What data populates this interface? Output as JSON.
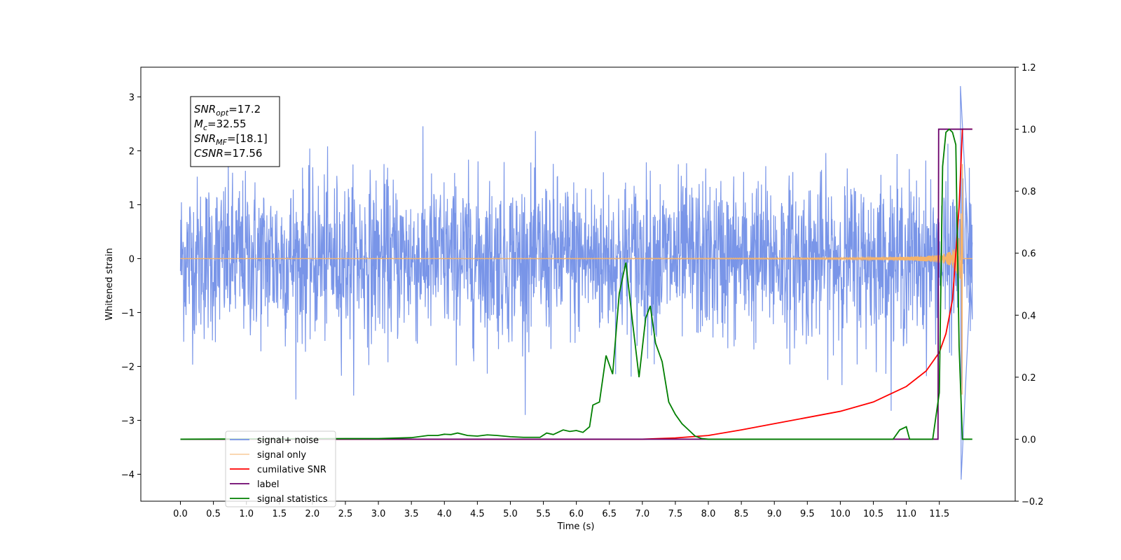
{
  "chart_data": {
    "type": "line",
    "xlabel": "Time (s)",
    "ylabel": "Whitened strain",
    "xlim": [
      -0.6,
      12.65
    ],
    "ylim_left": [
      -4.5,
      3.55
    ],
    "ylim_right": [
      -0.2,
      1.2
    ],
    "x_ticks": [
      "0.0",
      "0.5",
      "1.0",
      "1.5",
      "2.0",
      "2.5",
      "3.0",
      "3.5",
      "4.0",
      "4.5",
      "5.0",
      "5.5",
      "6.0",
      "6.5",
      "7.0",
      "7.5",
      "8.0",
      "8.5",
      "9.0",
      "9.5",
      "10.0",
      "10.5",
      "11.0",
      "11.5"
    ],
    "y_ticks_left": [
      "3",
      "2",
      "1",
      "0",
      "−1",
      "−2",
      "−3",
      "−4"
    ],
    "y_ticks_right": [
      "1.2",
      "1.0",
      "0.8",
      "0.6",
      "0.4",
      "0.2",
      "0.0",
      "−0.2"
    ],
    "annotation": {
      "lines": [
        {
          "main": "SNR",
          "sub": "opt",
          "rest": "=17.2"
        },
        {
          "main": "M",
          "sub": "c",
          "rest": "=32.55"
        },
        {
          "main": "SNR",
          "sub": "MF",
          "rest": "=[18.1]"
        },
        {
          "main": "CSNR",
          "sub": "",
          "rest": "=17.56"
        }
      ]
    },
    "legend_position": "lower-left",
    "series": [
      {
        "name": "signal+ noise",
        "axis": "left",
        "color": "#6a8ae6",
        "description_style": "noise",
        "noise_amplitude": 1.35,
        "x_range": [
          0.0,
          12.0
        ],
        "peak_max": 3.2,
        "peak_min": -4.1
      },
      {
        "name": "signal only",
        "axis": "left",
        "color": "#f5b36a",
        "x_range": [
          0.0,
          12.0
        ],
        "chirp_end": 11.85,
        "amplitude_peak": 2.8
      },
      {
        "name": "cumilative SNR",
        "axis": "right",
        "color": "#ff0000",
        "x": [
          0.0,
          6.5,
          7.0,
          7.5,
          8.0,
          8.5,
          9.0,
          9.5,
          10.0,
          10.5,
          11.0,
          11.3,
          11.5,
          11.6,
          11.7,
          11.8,
          11.85,
          12.0
        ],
        "y": [
          0.0,
          0.0,
          0.0,
          0.004,
          0.012,
          0.03,
          0.05,
          0.07,
          0.09,
          0.12,
          0.17,
          0.22,
          0.28,
          0.34,
          0.45,
          0.75,
          1.0,
          1.0
        ]
      },
      {
        "name": "label",
        "axis": "right",
        "color": "#6b006b",
        "x": [
          0.0,
          11.48,
          11.49,
          11.86,
          11.87,
          12.0
        ],
        "y": [
          0.0,
          0.0,
          1.0,
          1.0,
          1.0,
          1.0
        ]
      },
      {
        "name": "signal statistics",
        "axis": "right",
        "color": "#007f00",
        "x": [
          0.0,
          2.5,
          3.0,
          3.5,
          3.75,
          3.9,
          4.0,
          4.1,
          4.2,
          4.35,
          4.5,
          4.65,
          4.8,
          5.0,
          5.2,
          5.45,
          5.55,
          5.65,
          5.8,
          5.9,
          6.0,
          6.1,
          6.2,
          6.25,
          6.35,
          6.45,
          6.55,
          6.65,
          6.75,
          6.85,
          6.95,
          7.05,
          7.12,
          7.2,
          7.3,
          7.4,
          7.5,
          7.6,
          7.7,
          7.8,
          7.9,
          8.0,
          10.8,
          10.9,
          11.0,
          11.05,
          11.4,
          11.5,
          11.55,
          11.6,
          11.65,
          11.7,
          11.75,
          11.8,
          11.85,
          11.9,
          12.0
        ],
        "y": [
          0.0,
          0.002,
          0.002,
          0.005,
          0.012,
          0.012,
          0.016,
          0.015,
          0.02,
          0.012,
          0.01,
          0.014,
          0.012,
          0.008,
          0.006,
          0.006,
          0.02,
          0.015,
          0.03,
          0.025,
          0.028,
          0.022,
          0.04,
          0.11,
          0.12,
          0.27,
          0.21,
          0.47,
          0.57,
          0.38,
          0.2,
          0.39,
          0.43,
          0.31,
          0.25,
          0.12,
          0.08,
          0.05,
          0.03,
          0.01,
          0.002,
          0.0,
          0.0,
          0.03,
          0.04,
          0.0,
          0.0,
          0.15,
          0.88,
          0.99,
          1.0,
          0.99,
          0.95,
          0.3,
          0.0,
          0.0,
          0.0
        ]
      }
    ]
  }
}
